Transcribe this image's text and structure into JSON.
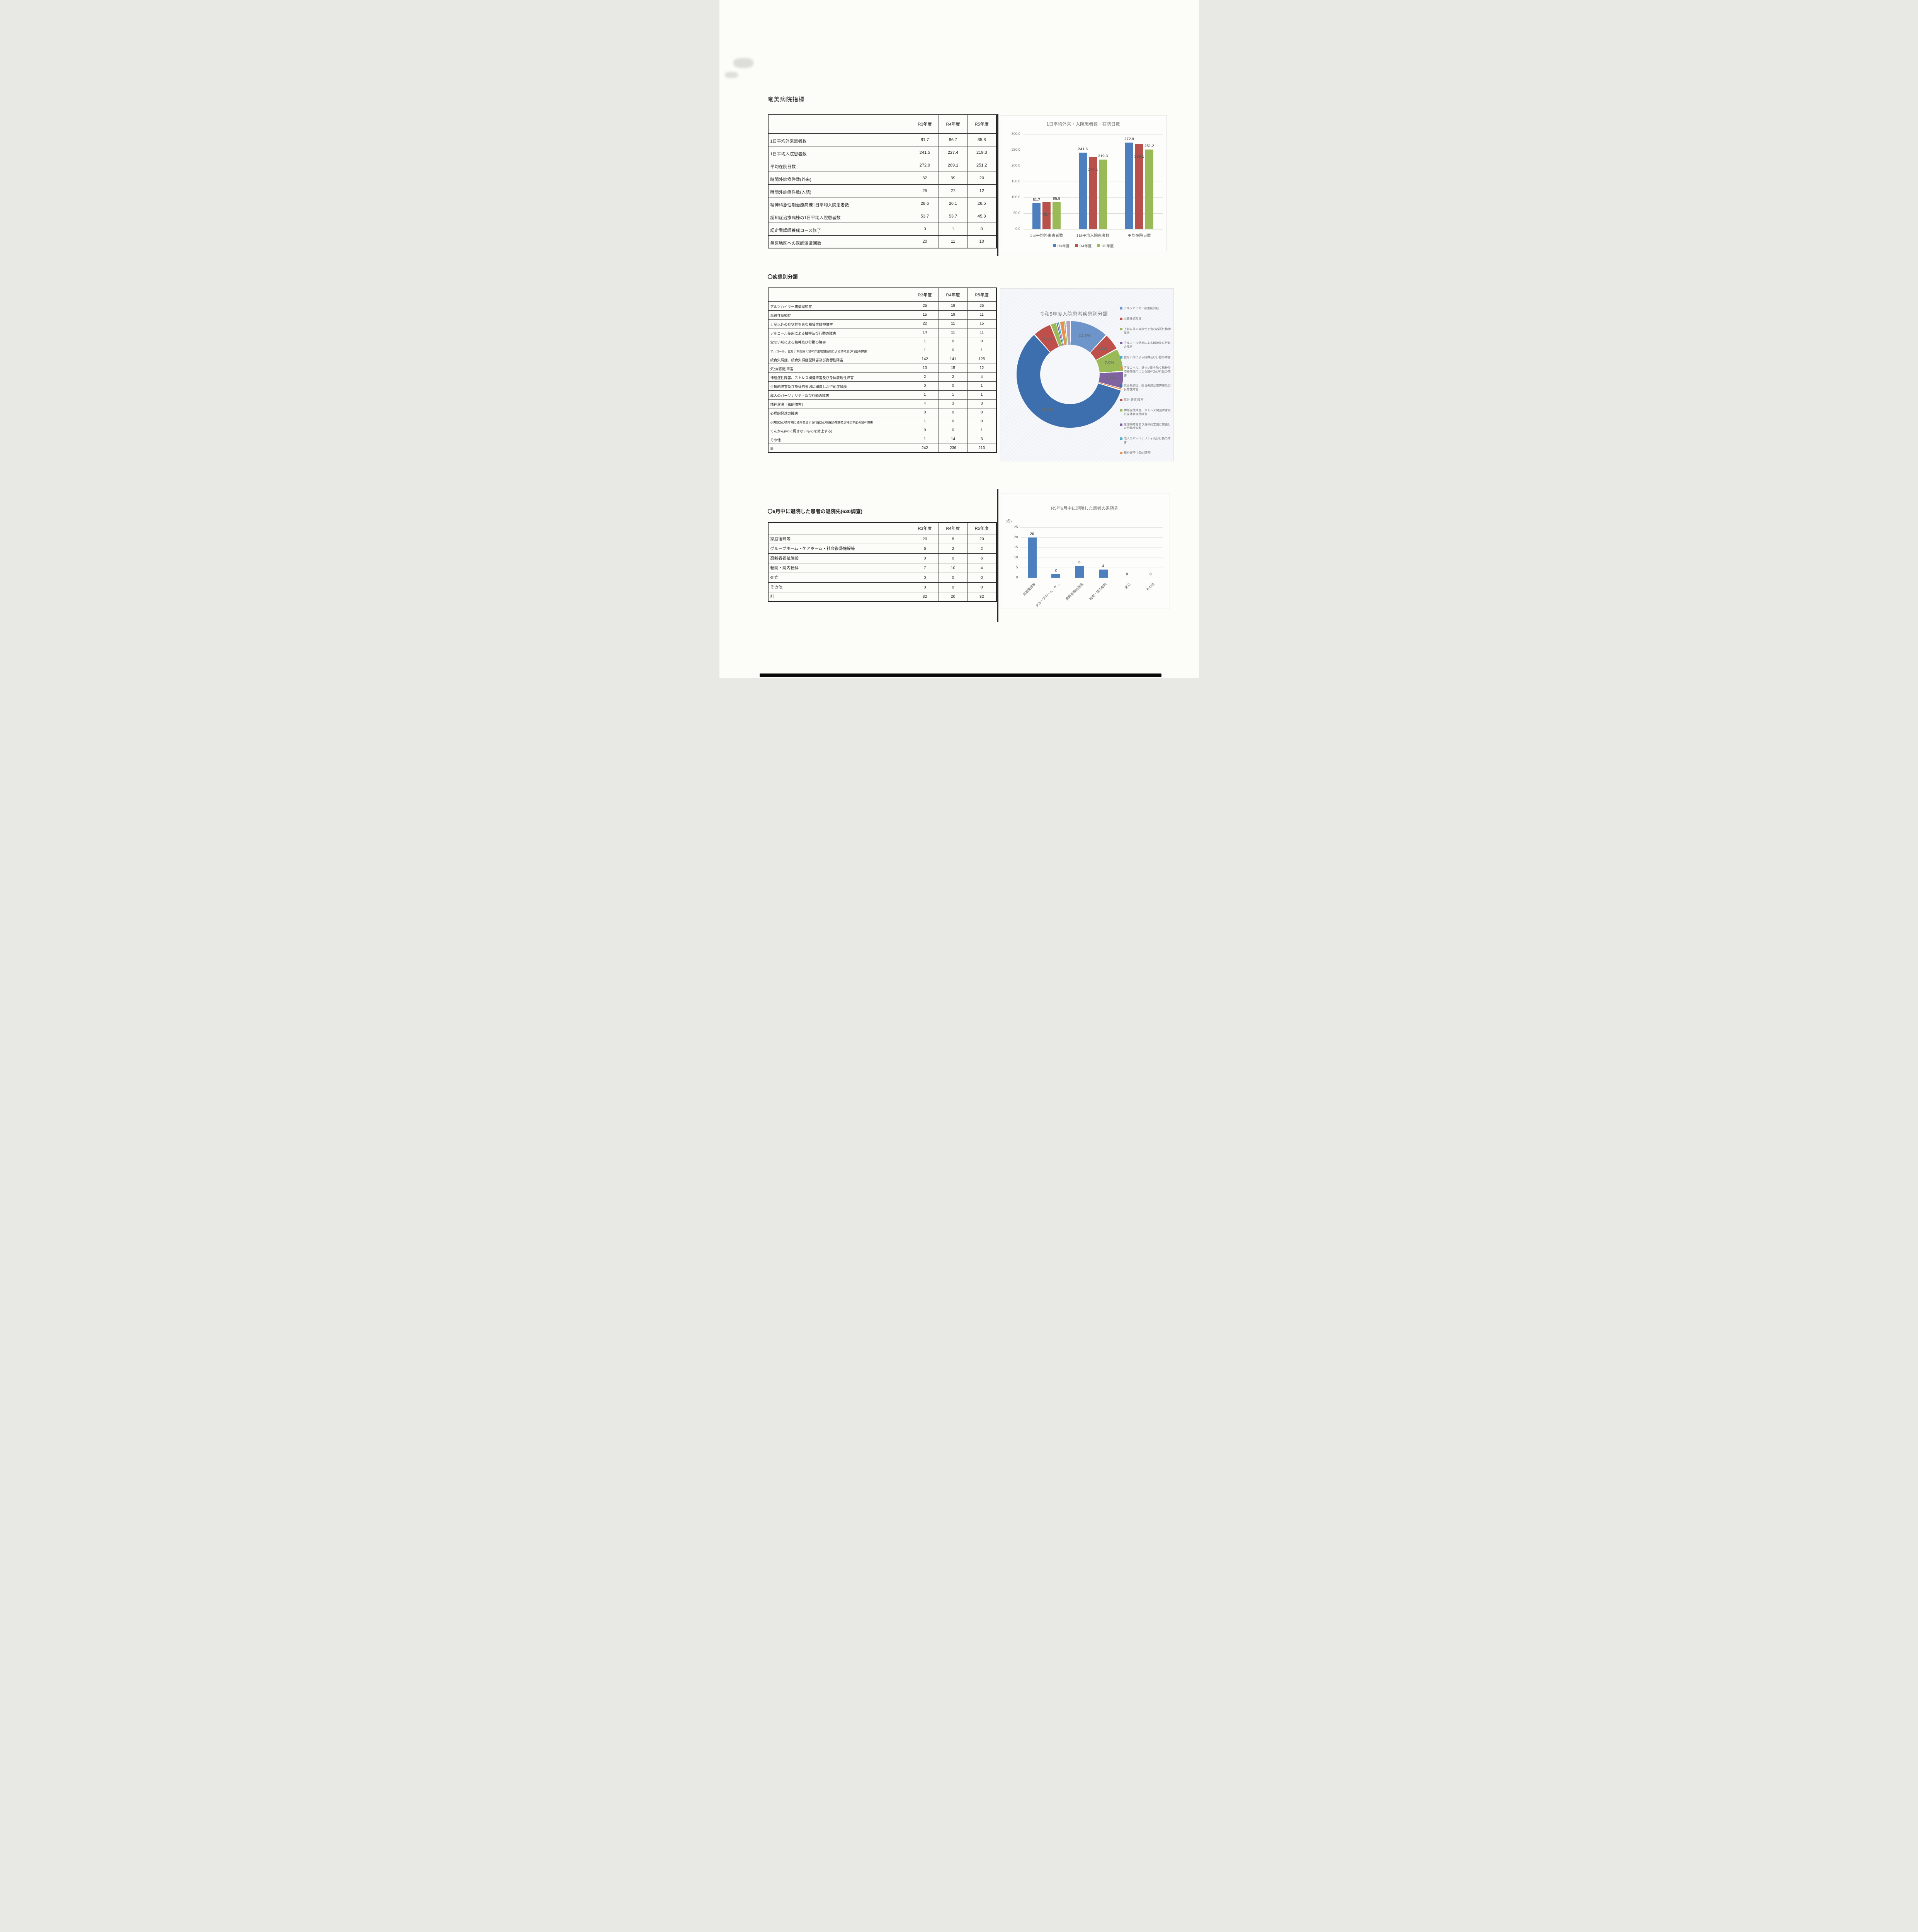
{
  "page": {
    "title": "奄美病院指標"
  },
  "year_headers": [
    "R3年度",
    "R4年度",
    "R5年度"
  ],
  "sections": {
    "disease": {
      "title": "〇疾患別分類"
    },
    "discharge": {
      "title": "〇6月中に退院した患者の退院先(630調査)"
    }
  },
  "table1": {
    "rows": [
      {
        "label": "1日平均外来患者数",
        "values": [
          "81.7",
          "86.7",
          "85.8"
        ]
      },
      {
        "label": "1日平均入院患者数",
        "values": [
          "241.5",
          "227.4",
          "219.3"
        ]
      },
      {
        "label": "平均在院日数",
        "values": [
          "272.9",
          "269.1",
          "251.2"
        ]
      },
      {
        "label": "時間外診療件数(外来)",
        "values": [
          "32",
          "39",
          "20"
        ]
      },
      {
        "label": "時間外診療件数(入院)",
        "values": [
          "25",
          "27",
          "12"
        ]
      },
      {
        "label": "精神科急性期治療病棟1日平均入院患者数",
        "values": [
          "28.6",
          "26.1",
          "26.5"
        ]
      },
      {
        "label": "認知症治療病棟の1日平均入院患者数",
        "values": [
          "53.7",
          "53.7",
          "45.3"
        ]
      },
      {
        "label": "認定看護師養成コース修了",
        "values": [
          "0",
          "1",
          "0"
        ]
      },
      {
        "label": "無医地区への医師派遣回数",
        "values": [
          "20",
          "11",
          "10"
        ]
      }
    ]
  },
  "table2": {
    "rows": [
      {
        "label": "アルツハイマー病型認知症",
        "values": [
          "25",
          "19",
          "25"
        ]
      },
      {
        "label": "血管性認知症",
        "values": [
          "15",
          "19",
          "11"
        ]
      },
      {
        "label": "上記以外の症状性を含む器質性精神障害",
        "values": [
          "22",
          "11",
          "15"
        ]
      },
      {
        "label": "アルコール使用による精神及び行動の障害",
        "values": [
          "14",
          "11",
          "11"
        ]
      },
      {
        "label": "覚せい剤による精神及び行動の障害",
        "values": [
          "1",
          "0",
          "0"
        ]
      },
      {
        "label": "アルコール、覚せい剤を除く精神作用物類使用による精神及び行動の障害",
        "values": [
          "1",
          "0",
          "1"
        ]
      },
      {
        "label": "統合失調症、統合失調症型障害及び妄想性障害",
        "values": [
          "142",
          "141",
          "125"
        ]
      },
      {
        "label": "気分(感情)障害",
        "values": [
          "13",
          "15",
          "12"
        ]
      },
      {
        "label": "神経症性障害、ストレス関連障害及び身体表現性障害",
        "values": [
          "2",
          "2",
          "4"
        ]
      },
      {
        "label": "生理的障害及び身体的要因に関連した行動症候群",
        "values": [
          "0",
          "0",
          "1"
        ]
      },
      {
        "label": "成人のパーソナリティ及び行動の障害",
        "values": [
          "1",
          "1",
          "1"
        ]
      },
      {
        "label": "精神遅滞〔知的障害〕",
        "values": [
          "4",
          "3",
          "3"
        ]
      },
      {
        "label": "心理的発達の障害",
        "values": [
          "0",
          "0",
          "0"
        ]
      },
      {
        "label": "小児期及び青年期に通常発症する行動及び情緒の障害及び特定不能の精神障害",
        "values": [
          "1",
          "0",
          "0"
        ]
      },
      {
        "label": "てんかん(F0に属さないものを計上する)",
        "values": [
          "0",
          "0",
          "1"
        ]
      },
      {
        "label": "その他",
        "values": [
          "1",
          "14",
          "3"
        ]
      },
      {
        "label": "計",
        "values": [
          "242",
          "236",
          "213"
        ]
      }
    ]
  },
  "table3": {
    "rows": [
      {
        "label": "家庭復帰等",
        "values": [
          "20",
          "8",
          "20"
        ]
      },
      {
        "label": "グループホーム・ケアホーム・社会復帰施設等",
        "values": [
          "5",
          "2",
          "2"
        ]
      },
      {
        "label": "高齢者福祉施設",
        "values": [
          "0",
          "0",
          "6"
        ]
      },
      {
        "label": "転院・院内転科",
        "values": [
          "7",
          "10",
          "4"
        ]
      },
      {
        "label": "死亡",
        "values": [
          "0",
          "0",
          "0"
        ]
      },
      {
        "label": "その他",
        "values": [
          "0",
          "0",
          "0"
        ]
      },
      {
        "label": "計",
        "values": [
          "32",
          "20",
          "32"
        ]
      }
    ]
  },
  "chart_data": [
    {
      "type": "grouped-bar",
      "title": "1日平均外来・入院患者数・在院日数",
      "categories": [
        "1日平均外来患者数",
        "1日平均入院患者数",
        "平均在院日数"
      ],
      "series": [
        {
          "name": "R3年度",
          "color": "#4d7ebd",
          "values": [
            81.7,
            241.5,
            272.9
          ]
        },
        {
          "name": "R4年度",
          "color": "#b8504c",
          "values": [
            86.7,
            227.4,
            269.1
          ]
        },
        {
          "name": "R5年度",
          "color": "#9aba57",
          "values": [
            85.8,
            219.3,
            251.2
          ]
        }
      ],
      "ylim": [
        0,
        300
      ],
      "ystep": 50,
      "grid": true,
      "legend_position": "bottom"
    },
    {
      "type": "donut",
      "title": "令和5年度入院患者疾患別分類",
      "categories": [
        "アルツハイマー病型認知症",
        "血管性認知症",
        "上記以外の症状性を含む器質性精神障害",
        "アルコール使用による精神及び行動の障害",
        "覚せい剤による精神及び行動の障害",
        "アルコール、覚せい剤を除く精神作用物類使用による精神及び行動の障害",
        "統合失調症、統合失調症型障害及び妄想性障害",
        "気分(感情)障害",
        "神経症性障害、ストレス関連障害及び身体表現性障害",
        "生理的障害及び身体的要因に関連した行動症候群",
        "成人のパーソナリティ及び行動の障害",
        "精神遅滞〔知的障害〕",
        "心理的発達の障害",
        "小児期及び青年期に通常発症する行動及び情緒の障害及び特定不能の精神障害",
        "てんかん(F0に属さないものを計上する)",
        "その他"
      ],
      "values": [
        25,
        11,
        15,
        11,
        0,
        1,
        125,
        12,
        4,
        1,
        1,
        3,
        0,
        0,
        1,
        3
      ],
      "shown_pct_labels": [
        "11.7%",
        "5.2%",
        "7.0%",
        "5.2%",
        "58.7%",
        "5.6%"
      ],
      "colors": [
        "#6e95c9",
        "#bf4f4b",
        "#9aba58",
        "#7f63a1",
        "#4bacc6",
        "#e89050",
        "#3d6fae",
        "#bf4f4b",
        "#9aba58",
        "#7f63a1",
        "#4bacc6",
        "#e89050",
        "#6e95c9",
        "#bf4f4b",
        "#9aba58",
        "#b3a2c7"
      ],
      "legend_count": 12,
      "label_min_pct": 5,
      "legend_position": "right"
    },
    {
      "type": "bar",
      "title": "R5年6月中に退院した患者の退院先",
      "unit": "(名)",
      "categories": [
        "家庭復帰等",
        "グループホーム・ケ…",
        "高齢者福祉施設",
        "転院・院内転科",
        "死亡",
        "その他"
      ],
      "values": [
        20,
        2,
        6,
        4,
        0,
        0
      ],
      "color": "#4d7ebd",
      "ylim": [
        0,
        25
      ],
      "ystep": 5,
      "grid": true
    }
  ]
}
